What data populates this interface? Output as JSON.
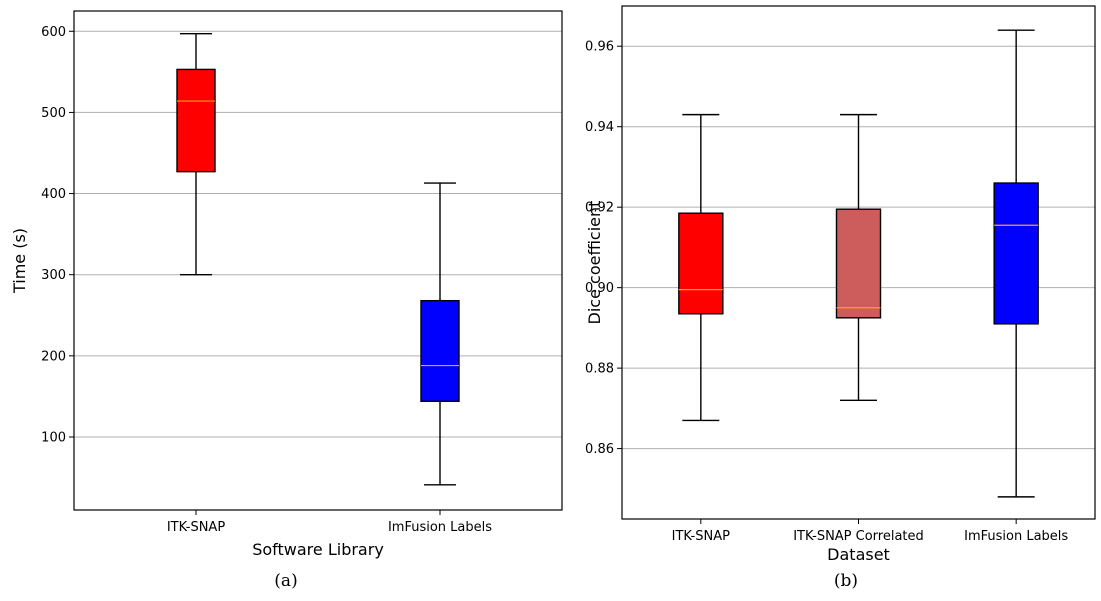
{
  "chart_data": [
    {
      "type": "box",
      "title": "",
      "xlabel": "Software Library",
      "ylabel": "Time (s)",
      "caption": "(a)",
      "ylim": [
        10,
        625
      ],
      "yticks": [
        100,
        200,
        300,
        400,
        500,
        600
      ],
      "ytick_labels": [
        "100",
        "200",
        "300",
        "400",
        "500",
        "600"
      ],
      "grid": "horizontal",
      "categories": [
        "ITK-SNAP",
        "ImFusion Labels"
      ],
      "boxes": [
        {
          "label": "ITK-SNAP",
          "whisker_low": 300,
          "q1": 427,
          "median": 514,
          "q3": 553,
          "whisker_high": 597,
          "color": "#ff0000"
        },
        {
          "label": "ImFusion Labels",
          "whisker_low": 41,
          "q1": 144,
          "median": 188,
          "q3": 268,
          "whisker_high": 413,
          "color": "#0000ff"
        }
      ],
      "median_color": "#ff9f1c"
    },
    {
      "type": "box",
      "title": "",
      "xlabel": "Dataset",
      "ylabel": "Dice coefficient",
      "caption": "(b)",
      "ylim": [
        0.8425,
        0.97
      ],
      "yticks": [
        0.86,
        0.88,
        0.9,
        0.92,
        0.94,
        0.96
      ],
      "ytick_labels": [
        "0.86",
        "0.88",
        "0.90",
        "0.92",
        "0.94",
        "0.96"
      ],
      "grid": "horizontal",
      "categories": [
        "ITK-SNAP",
        "ITK-SNAP Correlated",
        "ImFusion Labels"
      ],
      "boxes": [
        {
          "label": "ITK-SNAP",
          "whisker_low": 0.867,
          "q1": 0.8935,
          "median": 0.8995,
          "q3": 0.9185,
          "whisker_high": 0.943,
          "color": "#ff0000"
        },
        {
          "label": "ITK-SNAP Correlated",
          "whisker_low": 0.872,
          "q1": 0.8925,
          "median": 0.895,
          "q3": 0.9195,
          "whisker_high": 0.943,
          "color": "#cd5c5c"
        },
        {
          "label": "ImFusion Labels",
          "whisker_low": 0.848,
          "q1": 0.891,
          "median": 0.9155,
          "q3": 0.926,
          "whisker_high": 0.964,
          "color": "#0000ff"
        }
      ],
      "median_color": "#ff9f1c"
    }
  ]
}
